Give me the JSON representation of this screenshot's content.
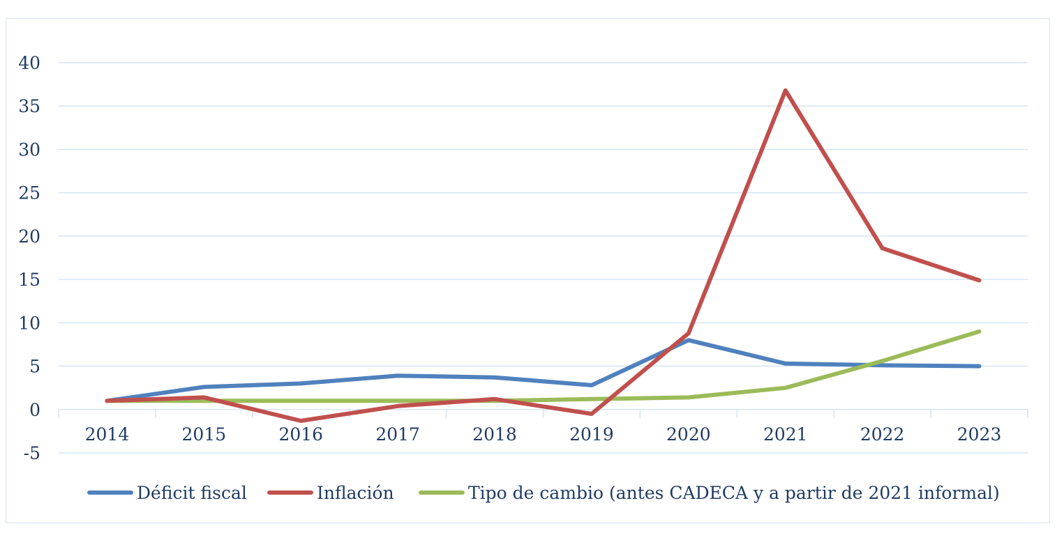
{
  "chart_data": {
    "type": "line",
    "title": "",
    "xlabel": "",
    "ylabel": "",
    "categories": [
      "2014",
      "2015",
      "2016",
      "2017",
      "2018",
      "2019",
      "2020",
      "2021",
      "2022",
      "2023"
    ],
    "ylim": [
      -5,
      40
    ],
    "yticks": [
      "-5",
      "0",
      "5",
      "10",
      "15",
      "20",
      "25",
      "30",
      "35",
      "40"
    ],
    "grid": true,
    "legend_position": "bottom",
    "series": [
      {
        "name": "Déficit fiscal",
        "color": "#4f81bd",
        "values": [
          1.0,
          2.6,
          3.0,
          3.9,
          3.7,
          2.8,
          8.0,
          5.3,
          5.1,
          5.0
        ]
      },
      {
        "name": "Inflación",
        "color": "#c0504d",
        "values": [
          1.0,
          1.4,
          -1.3,
          0.4,
          1.2,
          -0.5,
          8.8,
          36.8,
          18.6,
          14.9
        ]
      },
      {
        "name": "Tipo de cambio (antes CADECA y a partir de 2021 informal)",
        "color": "#9bbb59",
        "values": [
          1.0,
          1.0,
          1.0,
          1.0,
          1.0,
          1.2,
          1.4,
          2.5,
          5.6,
          9.0
        ]
      }
    ]
  }
}
